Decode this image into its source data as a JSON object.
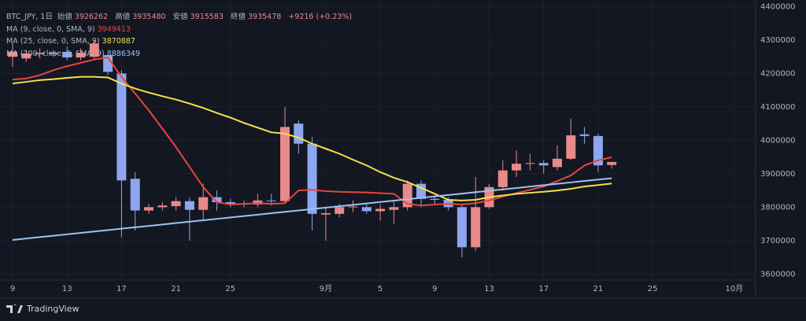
{
  "chart_data": {
    "type": "candlestick",
    "title": "BTC_JPY, 1日",
    "ohlc_labels": {
      "open": "始値",
      "high": "高値",
      "low": "安値",
      "close": "終値"
    },
    "change": "+9216 (+0.23%)",
    "categories": [
      "9",
      null,
      null,
      null,
      "13",
      null,
      null,
      null,
      "17",
      null,
      null,
      null,
      "21",
      null,
      null,
      null,
      "25",
      null,
      null,
      null,
      null,
      null,
      null,
      "9月",
      null,
      null,
      null,
      "5",
      null,
      null,
      null,
      "9",
      null,
      null,
      null,
      "13",
      null,
      null,
      null,
      "17",
      null,
      null,
      null,
      "21",
      null,
      null,
      null,
      "25",
      null,
      null,
      null,
      null,
      null,
      "10月"
    ],
    "open": [
      4250000,
      4245000,
      4258000,
      4262000,
      4265000,
      4248000,
      4250000,
      4255000,
      4200000,
      3885000,
      3790000,
      3800000,
      3803000,
      3818000,
      3792000,
      3830000,
      3815000,
      3810000,
      3808000,
      3820000,
      3818000,
      4050000,
      3990000,
      3778000,
      3780000,
      3800000,
      3800000,
      3788000,
      3792000,
      3800000,
      3870000,
      3825000,
      3822000,
      3800000,
      3680000,
      3800000,
      3860000,
      3910000,
      3930000,
      3932000,
      3920000,
      3945000,
      4018000,
      4013000,
      3926262,
      null,
      null,
      null,
      null,
      null,
      null,
      null,
      null,
      null
    ],
    "high": [
      4290000,
      4270000,
      4275000,
      4270000,
      4280000,
      4275000,
      4300000,
      4265000,
      4210000,
      3905000,
      3810000,
      3815000,
      3830000,
      3830000,
      3870000,
      3850000,
      3825000,
      3820000,
      3840000,
      3840000,
      4100000,
      4060000,
      4010000,
      3800000,
      3810000,
      3820000,
      3810000,
      3810000,
      3820000,
      3880000,
      3880000,
      3835000,
      3830000,
      3810000,
      3890000,
      3870000,
      3940000,
      3970000,
      3960000,
      3940000,
      3985000,
      4065000,
      4040000,
      4020000,
      3935480,
      null,
      null,
      null,
      null,
      null,
      null,
      null,
      null,
      null
    ],
    "low": [
      4220000,
      4235000,
      4245000,
      4250000,
      4240000,
      4240000,
      4240000,
      4195000,
      3710000,
      3730000,
      3780000,
      3790000,
      3790000,
      3700000,
      3760000,
      3790000,
      3800000,
      3800000,
      3800000,
      3805000,
      3810000,
      3960000,
      3730000,
      3700000,
      3770000,
      3785000,
      3780000,
      3760000,
      3750000,
      3790000,
      3800000,
      3810000,
      3790000,
      3650000,
      3670000,
      3795000,
      3850000,
      3890000,
      3910000,
      3900000,
      3910000,
      3940000,
      3990000,
      3905000,
      3915583,
      null,
      null,
      null,
      null,
      null,
      null,
      null,
      null,
      null
    ],
    "close": [
      4265000,
      4260000,
      4262000,
      4258000,
      4248000,
      4262000,
      4290000,
      4205000,
      3880000,
      3790000,
      3800000,
      3805000,
      3818000,
      3792000,
      3830000,
      3815000,
      3810000,
      3808000,
      3820000,
      3818000,
      4040000,
      3990000,
      3780000,
      3782000,
      3800000,
      3802000,
      3788000,
      3795000,
      3800000,
      3870000,
      3825000,
      3822000,
      3800000,
      3680000,
      3800000,
      3860000,
      3910000,
      3930000,
      3932000,
      3925000,
      3945000,
      4015000,
      4013000,
      3925000,
      3935478,
      null,
      null,
      null,
      null,
      null,
      null,
      null,
      null,
      null
    ],
    "up_color": "#e8898a",
    "down_color": "#8ea6ef",
    "series": [
      {
        "name": "MA (9, close, 0, SMA, 9)",
        "color": "#e5473a",
        "values": [
          4182000,
          4185000,
          4195000,
          4210000,
          4222000,
          4232000,
          4242000,
          4248000,
          4190000,
          4140000,
          4090000,
          4035000,
          3980000,
          3920000,
          3860000,
          3815000,
          3808000,
          3810000,
          3812000,
          3810000,
          3812000,
          3850000,
          3852000,
          3848000,
          3846000,
          3845000,
          3844000,
          3842000,
          3840000,
          3810000,
          3805000,
          3808000,
          3810000,
          3808000,
          3812000,
          3820000,
          3832000,
          3842000,
          3852000,
          3862000,
          3878000,
          3895000,
          3925000,
          3940000,
          3949413,
          null,
          null,
          null,
          null,
          null,
          null,
          null,
          null,
          null
        ]
      },
      {
        "name": "MA (25, close, 0, SMA, 9)",
        "color": "#f4e04a",
        "values": [
          4170000,
          4175000,
          4180000,
          4183000,
          4187000,
          4190000,
          4190000,
          4188000,
          4170000,
          4155000,
          4143000,
          4132000,
          4122000,
          4110000,
          4097000,
          4082000,
          4068000,
          4052000,
          4038000,
          4024000,
          4020000,
          4008000,
          3990000,
          3975000,
          3960000,
          3942000,
          3925000,
          3905000,
          3888000,
          3875000,
          3858000,
          3840000,
          3822000,
          3820000,
          3822000,
          3830000,
          3835000,
          3840000,
          3843000,
          3846000,
          3850000,
          3855000,
          3862000,
          3866000,
          3870887,
          null,
          null,
          null,
          null,
          null,
          null,
          null,
          null,
          null
        ]
      },
      {
        "name": "MA (200, close, 0, SMA, 9)",
        "color": "#9cc2f3",
        "values": [
          3702000,
          3706200,
          3710400,
          3714600,
          3718800,
          3723000,
          3727200,
          3731400,
          3735600,
          3739800,
          3744000,
          3748200,
          3752400,
          3756600,
          3760800,
          3765000,
          3769200,
          3773400,
          3777600,
          3781800,
          3786000,
          3790200,
          3794400,
          3798600,
          3802800,
          3807000,
          3811200,
          3815400,
          3819600,
          3823800,
          3828000,
          3832200,
          3836400,
          3840600,
          3844800,
          3849000,
          3853200,
          3857400,
          3861600,
          3865800,
          3870000,
          3874200,
          3878400,
          3882600,
          3886349,
          null,
          null,
          null,
          null,
          null,
          null,
          null,
          null,
          null
        ]
      }
    ],
    "ylim": [
      3530000,
      4420000
    ],
    "yticks": [
      3600000,
      3700000,
      3800000,
      3900000,
      4000000,
      4100000,
      4200000,
      4300000,
      4400000
    ],
    "grid": true
  },
  "footer": {
    "brand": "TradingView"
  }
}
